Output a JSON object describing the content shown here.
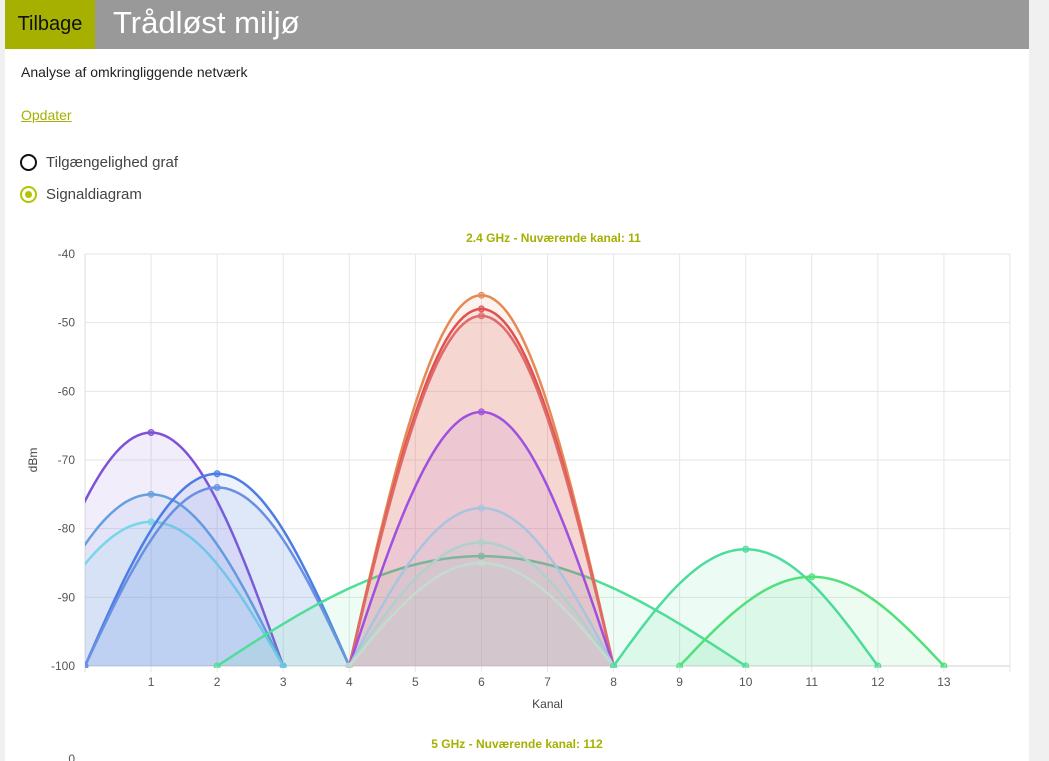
{
  "header": {
    "back_label": "Tilbage",
    "title": "Trådløst miljø"
  },
  "subtitle": "Analyse af omkringliggende netværk",
  "refresh_label": "Opdater",
  "view_options": [
    {
      "label": "Tilgængelighed graf",
      "selected": false
    },
    {
      "label": "Signaldiagram",
      "selected": true
    }
  ],
  "colors": {
    "accent": "#a5b000",
    "header_bg": "#999999"
  },
  "chart_data": {
    "type": "area",
    "title": "2.4 GHz - Nuværende kanal: 11",
    "xlabel": "Kanal",
    "ylabel": "dBm",
    "xlim": [
      0,
      14
    ],
    "ylim": [
      -100,
      -40
    ],
    "x_ticks": [
      1,
      2,
      3,
      4,
      5,
      6,
      7,
      8,
      9,
      10,
      11,
      12,
      13
    ],
    "y_ticks": [
      -40,
      -50,
      -60,
      -70,
      -80,
      -90,
      -100
    ],
    "grid": true,
    "legend": "none",
    "series": [
      {
        "center": 1,
        "peak": -66,
        "half_width": 2,
        "color": "#7e52d6"
      },
      {
        "center": 1,
        "peak": -75,
        "half_width": 2,
        "color": "#64a0de"
      },
      {
        "center": 1,
        "peak": -79,
        "half_width": 2,
        "color": "#76d6ea"
      },
      {
        "center": 2,
        "peak": -72,
        "half_width": 2,
        "color": "#4d7de3"
      },
      {
        "center": 2,
        "peak": -74,
        "half_width": 2,
        "color": "#6a90e3"
      },
      {
        "center": 6,
        "peak": -84,
        "half_width": 4,
        "color": "#4ede98"
      },
      {
        "center": 6,
        "peak": -46,
        "half_width": 2,
        "color": "#e58a55"
      },
      {
        "center": 6,
        "peak": -48,
        "half_width": 2,
        "color": "#e05252"
      },
      {
        "center": 6,
        "peak": -49,
        "half_width": 2,
        "color": "#e06a6a"
      },
      {
        "center": 6,
        "peak": -63,
        "half_width": 2,
        "color": "#a050e0"
      },
      {
        "center": 6,
        "peak": -77,
        "half_width": 2,
        "color": "#a8c4de"
      },
      {
        "center": 6,
        "peak": -82,
        "half_width": 2,
        "color": "#b0d0cc"
      },
      {
        "center": 6,
        "peak": -85,
        "half_width": 2,
        "color": "#c4dcd0"
      },
      {
        "center": 10,
        "peak": -83,
        "half_width": 2,
        "color": "#4cdc9e"
      },
      {
        "center": 11,
        "peak": -87,
        "half_width": 2,
        "color": "#52e07a"
      }
    ]
  },
  "chart2": {
    "title": "5 GHz - Nuværende kanal: 112",
    "first_tick": "0"
  }
}
